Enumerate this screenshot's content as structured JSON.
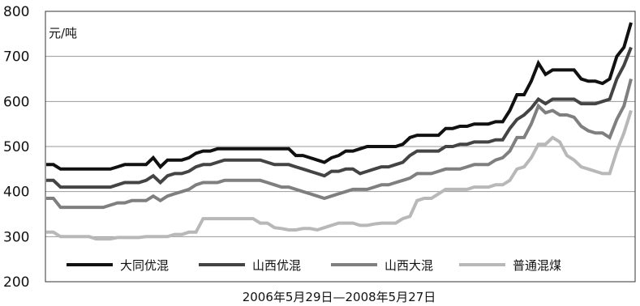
{
  "chart_data": {
    "type": "line",
    "unit_label": "元/吨",
    "xlabel": "2006年5月29日—2008年5月27日",
    "ylim": [
      200,
      800
    ],
    "yticks": [
      200,
      300,
      400,
      500,
      600,
      700,
      800
    ],
    "grid": true,
    "legend_position": "bottom",
    "series": [
      {
        "name": "大同优混",
        "color": "#111111",
        "values": [
          460,
          460,
          450,
          450,
          450,
          450,
          450,
          450,
          450,
          450,
          455,
          460,
          460,
          460,
          460,
          475,
          455,
          470,
          470,
          470,
          475,
          485,
          490,
          490,
          495,
          495,
          495,
          495,
          495,
          495,
          495,
          495,
          495,
          495,
          495,
          480,
          480,
          475,
          470,
          465,
          475,
          480,
          490,
          490,
          495,
          500,
          500,
          500,
          500,
          500,
          505,
          520,
          525,
          525,
          525,
          525,
          540,
          540,
          545,
          545,
          550,
          550,
          550,
          555,
          555,
          580,
          615,
          615,
          645,
          685,
          660,
          670,
          670,
          670,
          670,
          650,
          645,
          645,
          640,
          650,
          700,
          720,
          775
        ]
      },
      {
        "name": "山西优混",
        "color": "#444444",
        "values": [
          425,
          425,
          410,
          410,
          410,
          410,
          410,
          410,
          410,
          410,
          415,
          420,
          420,
          420,
          425,
          435,
          420,
          435,
          440,
          440,
          445,
          455,
          460,
          460,
          465,
          470,
          470,
          470,
          470,
          470,
          470,
          465,
          460,
          460,
          460,
          455,
          450,
          445,
          440,
          435,
          445,
          445,
          450,
          450,
          440,
          445,
          450,
          455,
          455,
          460,
          465,
          480,
          490,
          490,
          490,
          490,
          500,
          500,
          505,
          505,
          510,
          510,
          510,
          515,
          515,
          540,
          560,
          570,
          585,
          605,
          595,
          605,
          605,
          605,
          605,
          595,
          595,
          595,
          600,
          605,
          650,
          680,
          720
        ]
      },
      {
        "name": "山西大混",
        "color": "#7f7f7f",
        "values": [
          385,
          385,
          365,
          365,
          365,
          365,
          365,
          365,
          365,
          370,
          375,
          375,
          380,
          380,
          380,
          390,
          380,
          390,
          395,
          400,
          405,
          415,
          420,
          420,
          420,
          425,
          425,
          425,
          425,
          425,
          425,
          420,
          415,
          410,
          410,
          405,
          400,
          395,
          390,
          385,
          390,
          395,
          400,
          405,
          405,
          405,
          410,
          415,
          415,
          420,
          425,
          430,
          440,
          440,
          440,
          445,
          450,
          450,
          450,
          455,
          460,
          460,
          460,
          470,
          475,
          490,
          520,
          520,
          550,
          590,
          575,
          580,
          570,
          570,
          565,
          545,
          535,
          530,
          530,
          520,
          560,
          590,
          650
        ]
      },
      {
        "name": "普通混煤",
        "color": "#b8b8b8",
        "values": [
          310,
          310,
          300,
          300,
          300,
          300,
          300,
          295,
          295,
          295,
          298,
          298,
          298,
          298,
          300,
          300,
          300,
          300,
          305,
          305,
          310,
          310,
          340,
          340,
          340,
          340,
          340,
          340,
          340,
          340,
          330,
          330,
          320,
          318,
          315,
          315,
          318,
          318,
          315,
          320,
          325,
          330,
          330,
          330,
          325,
          325,
          328,
          330,
          330,
          330,
          340,
          345,
          380,
          385,
          385,
          395,
          405,
          405,
          405,
          405,
          410,
          410,
          410,
          415,
          415,
          425,
          450,
          455,
          475,
          505,
          505,
          520,
          510,
          480,
          470,
          455,
          450,
          445,
          440,
          440,
          490,
          530,
          580
        ]
      }
    ]
  }
}
